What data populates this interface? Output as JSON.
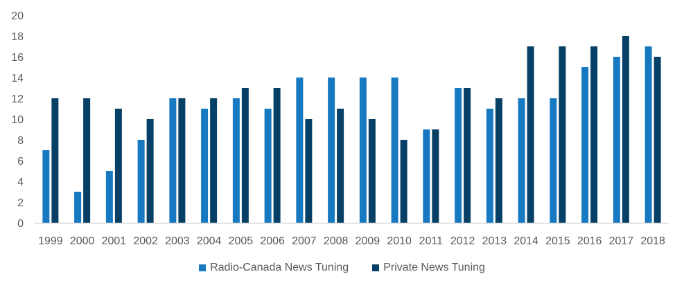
{
  "chart_data": {
    "type": "bar",
    "title": "",
    "xlabel": "",
    "ylabel": "",
    "ylim": [
      0,
      20
    ],
    "yticks": [
      0,
      2,
      4,
      6,
      8,
      10,
      12,
      14,
      16,
      18,
      20
    ],
    "grid": false,
    "legend_position": "bottom",
    "categories": [
      "1999",
      "2000",
      "2001",
      "2002",
      "2003",
      "2004",
      "2005",
      "2006",
      "2007",
      "2008",
      "2009",
      "2010",
      "2011",
      "2012",
      "2013",
      "2014",
      "2015",
      "2016",
      "2017",
      "2018"
    ],
    "series": [
      {
        "name": "Radio-Canada News Tuning",
        "color": "#1779C1",
        "values": [
          7,
          3,
          5,
          8,
          12,
          11,
          12,
          11,
          14,
          14,
          14,
          14,
          9,
          13,
          11,
          12,
          12,
          15,
          16,
          17
        ]
      },
      {
        "name": "Private News Tuning",
        "color": "#064066",
        "values": [
          12,
          12,
          11,
          10,
          12,
          12,
          13,
          13,
          10,
          11,
          10,
          8,
          9,
          13,
          12,
          17,
          17,
          17,
          18,
          16
        ]
      }
    ]
  }
}
